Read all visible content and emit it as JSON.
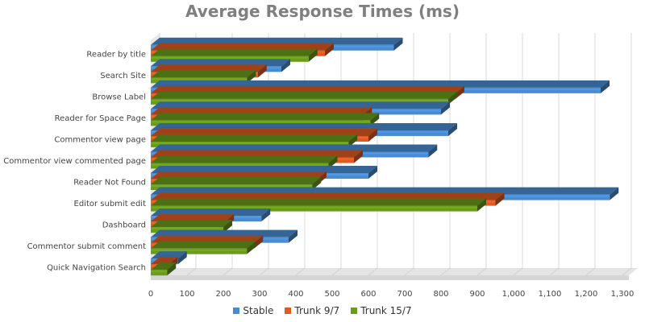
{
  "chart_data": {
    "type": "bar",
    "orientation": "horizontal",
    "title": "Average Response Times (ms)",
    "categories": [
      "Reader by title",
      "Search Site",
      "Browse Label",
      "Reader for Space Page",
      "Commentor view page",
      "Commentor view commented page",
      "Reader Not Found",
      "Editor submit edit",
      "Dashboard",
      "Commentor submit comment",
      "Quick Navigation Search"
    ],
    "series": [
      {
        "name": "Stable",
        "color": "#4a8bd0",
        "values": [
          670,
          360,
          1240,
          800,
          820,
          765,
          600,
          1265,
          305,
          380,
          75
        ]
      },
      {
        "name": "Trunk 9/7",
        "color": "#e05a22",
        "values": [
          480,
          295,
          840,
          585,
          600,
          560,
          460,
          950,
          205,
          285,
          50
        ]
      },
      {
        "name": "Trunk 15/7",
        "color": "#6a9b1c",
        "values": [
          435,
          265,
          820,
          605,
          545,
          490,
          445,
          900,
          200,
          265,
          45
        ]
      }
    ],
    "xlim": [
      0,
      1300
    ],
    "x_ticks": [
      0,
      100,
      200,
      300,
      400,
      500,
      600,
      700,
      800,
      900,
      1000,
      1100,
      1200,
      1300
    ],
    "x_tick_labels": [
      "0",
      "100",
      "200",
      "300",
      "400",
      "500",
      "600",
      "700",
      "800",
      "900",
      "1,000",
      "1,100",
      "1,200",
      "1,300"
    ],
    "grid": true,
    "legend_position": "bottom"
  }
}
